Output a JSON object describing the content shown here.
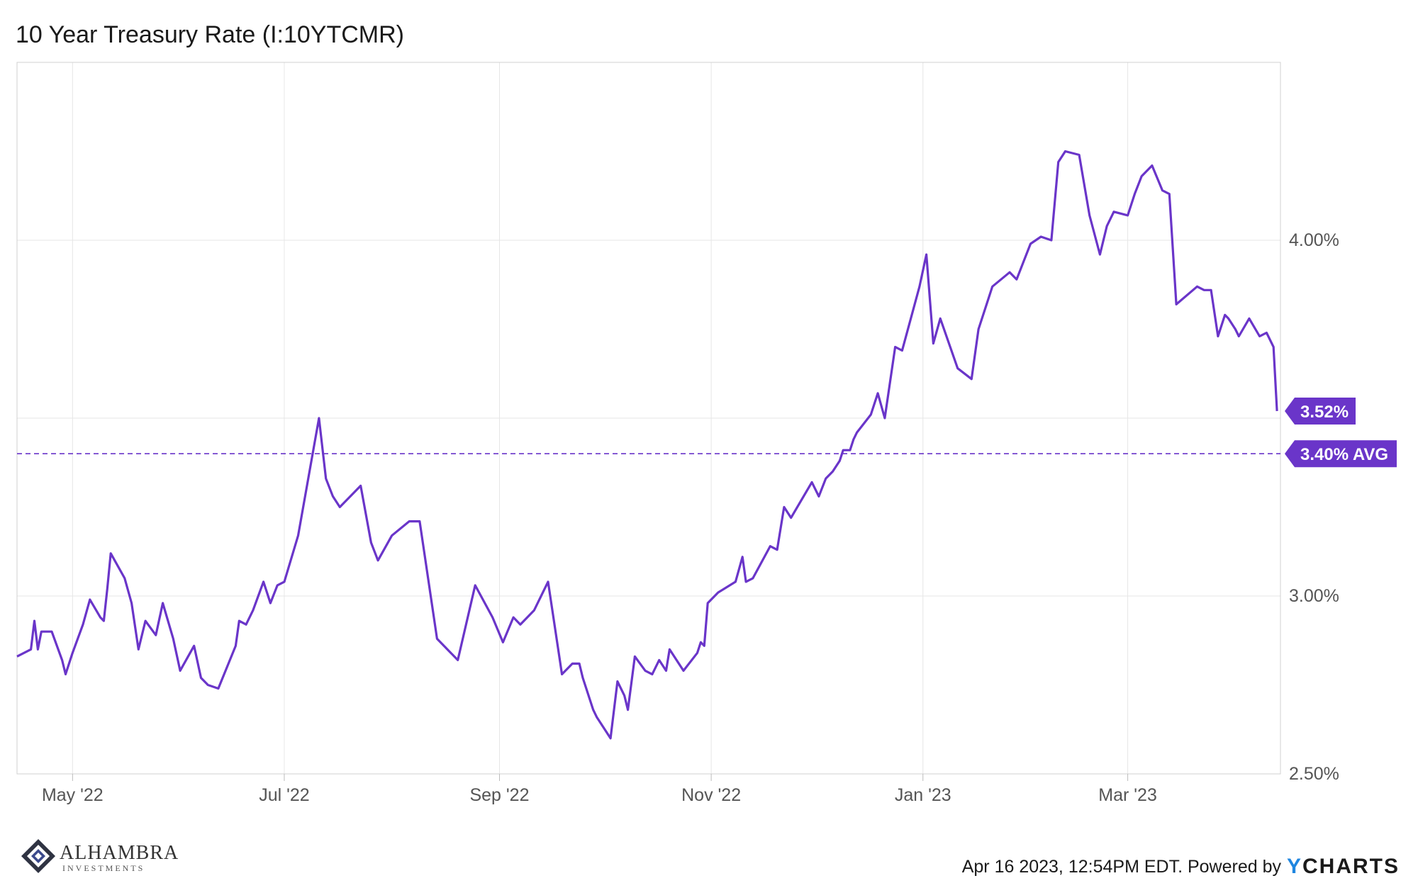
{
  "title": "10 Year Treasury Rate (I:10YTCMR)",
  "logo": {
    "name": "ALHAMBRA",
    "sub": "INVESTMENTS"
  },
  "footer": {
    "text": "Apr 16 2023, 12:54PM EDT. Powered by",
    "brand_y": "Y",
    "brand_rest": "CHARTS"
  },
  "colors": {
    "line": "#6a35c9",
    "badge": "#6a35c9",
    "grid": "#e6e6e6"
  },
  "chart_data": {
    "type": "line",
    "title": "10 Year Treasury Rate (I:10YTCMR)",
    "ylim": [
      2.5,
      4.5
    ],
    "x_range": [
      "2022-04-15",
      "2023-04-14"
    ],
    "yticks": [
      {
        "value": 2.5,
        "label": "2.50%"
      },
      {
        "value": 3.0,
        "label": "3.00%"
      },
      {
        "value": 4.0,
        "label": "4.00%"
      }
    ],
    "xticks": [
      {
        "date": "2022-05-01",
        "label": "May '22"
      },
      {
        "date": "2022-07-01",
        "label": "Jul '22"
      },
      {
        "date": "2022-09-01",
        "label": "Sep '22"
      },
      {
        "date": "2022-11-01",
        "label": "Nov '22"
      },
      {
        "date": "2023-01-01",
        "label": "Jan '23"
      },
      {
        "date": "2023-03-01",
        "label": "Mar '23"
      }
    ],
    "last_value": {
      "value": 3.52,
      "label": "3.52%"
    },
    "average": {
      "value": 3.4,
      "label": "3.40% AVG"
    },
    "grid": true,
    "series": [
      {
        "points": [
          [
            "2022-04-15",
            2.83
          ],
          [
            "2022-04-19",
            2.85
          ],
          [
            "2022-04-20",
            2.93
          ],
          [
            "2022-04-21",
            2.85
          ],
          [
            "2022-04-22",
            2.9
          ],
          [
            "2022-04-25",
            2.9
          ],
          [
            "2022-04-28",
            2.82
          ],
          [
            "2022-04-29",
            2.78
          ],
          [
            "2022-05-01",
            2.84
          ],
          [
            "2022-05-04",
            2.92
          ],
          [
            "2022-05-06",
            2.99
          ],
          [
            "2022-05-09",
            2.94
          ],
          [
            "2022-05-10",
            2.93
          ],
          [
            "2022-05-11",
            3.02
          ],
          [
            "2022-05-12",
            3.12
          ],
          [
            "2022-05-16",
            3.05
          ],
          [
            "2022-05-18",
            2.98
          ],
          [
            "2022-05-20",
            2.85
          ],
          [
            "2022-05-22",
            2.93
          ],
          [
            "2022-05-25",
            2.89
          ],
          [
            "2022-05-27",
            2.98
          ],
          [
            "2022-05-30",
            2.88
          ],
          [
            "2022-06-01",
            2.79
          ],
          [
            "2022-06-05",
            2.86
          ],
          [
            "2022-06-07",
            2.77
          ],
          [
            "2022-06-09",
            2.75
          ],
          [
            "2022-06-12",
            2.74
          ],
          [
            "2022-06-17",
            2.86
          ],
          [
            "2022-06-18",
            2.93
          ],
          [
            "2022-06-20",
            2.92
          ],
          [
            "2022-06-22",
            2.96
          ],
          [
            "2022-06-25",
            3.04
          ],
          [
            "2022-06-27",
            2.98
          ],
          [
            "2022-06-29",
            3.03
          ],
          [
            "2022-07-01",
            3.04
          ],
          [
            "2022-07-05",
            3.17
          ],
          [
            "2022-07-11",
            3.5
          ],
          [
            "2022-07-13",
            3.33
          ],
          [
            "2022-07-15",
            3.28
          ],
          [
            "2022-07-17",
            3.25
          ],
          [
            "2022-07-23",
            3.31
          ],
          [
            "2022-07-26",
            3.15
          ],
          [
            "2022-07-28",
            3.1
          ],
          [
            "2022-08-01",
            3.17
          ],
          [
            "2022-08-06",
            3.21
          ],
          [
            "2022-08-09",
            3.21
          ],
          [
            "2022-08-14",
            2.88
          ],
          [
            "2022-08-20",
            2.82
          ],
          [
            "2022-08-25",
            3.03
          ],
          [
            "2022-08-30",
            2.94
          ],
          [
            "2022-09-02",
            2.87
          ],
          [
            "2022-09-05",
            2.94
          ],
          [
            "2022-09-07",
            2.92
          ],
          [
            "2022-09-11",
            2.96
          ],
          [
            "2022-09-15",
            3.04
          ],
          [
            "2022-09-19",
            2.78
          ],
          [
            "2022-09-22",
            2.81
          ],
          [
            "2022-09-24",
            2.81
          ],
          [
            "2022-09-25",
            2.77
          ],
          [
            "2022-09-28",
            2.68
          ],
          [
            "2022-09-29",
            2.66
          ],
          [
            "2022-10-03",
            2.6
          ],
          [
            "2022-10-05",
            2.76
          ],
          [
            "2022-10-07",
            2.72
          ],
          [
            "2022-10-08",
            2.68
          ],
          [
            "2022-10-10",
            2.83
          ],
          [
            "2022-10-13",
            2.79
          ],
          [
            "2022-10-15",
            2.78
          ],
          [
            "2022-10-17",
            2.82
          ],
          [
            "2022-10-19",
            2.79
          ],
          [
            "2022-10-20",
            2.85
          ],
          [
            "2022-10-24",
            2.79
          ],
          [
            "2022-10-28",
            2.84
          ],
          [
            "2022-10-29",
            2.87
          ],
          [
            "2022-10-30",
            2.86
          ],
          [
            "2022-10-31",
            2.98
          ],
          [
            "2022-11-03",
            3.01
          ],
          [
            "2022-11-08",
            3.04
          ],
          [
            "2022-11-10",
            3.11
          ],
          [
            "2022-11-11",
            3.04
          ],
          [
            "2022-11-13",
            3.05
          ],
          [
            "2022-11-18",
            3.14
          ],
          [
            "2022-11-20",
            3.13
          ],
          [
            "2022-11-22",
            3.25
          ],
          [
            "2022-11-24",
            3.22
          ],
          [
            "2022-11-30",
            3.32
          ],
          [
            "2022-12-02",
            3.28
          ],
          [
            "2022-12-04",
            3.33
          ],
          [
            "2022-12-06",
            3.35
          ],
          [
            "2022-12-08",
            3.38
          ],
          [
            "2022-12-09",
            3.41
          ],
          [
            "2022-12-11",
            3.41
          ],
          [
            "2022-12-12",
            3.44
          ],
          [
            "2022-12-13",
            3.46
          ],
          [
            "2022-12-17",
            3.51
          ],
          [
            "2022-12-19",
            3.57
          ],
          [
            "2022-12-21",
            3.5
          ],
          [
            "2022-12-24",
            3.7
          ],
          [
            "2022-12-26",
            3.69
          ],
          [
            "2022-12-31",
            3.87
          ],
          [
            "2023-01-02",
            3.96
          ],
          [
            "2023-01-04",
            3.71
          ],
          [
            "2023-01-06",
            3.78
          ],
          [
            "2023-01-11",
            3.64
          ],
          [
            "2023-01-15",
            3.61
          ],
          [
            "2023-01-17",
            3.75
          ],
          [
            "2023-01-21",
            3.87
          ],
          [
            "2023-01-26",
            3.91
          ],
          [
            "2023-01-28",
            3.89
          ],
          [
            "2023-01-30",
            3.94
          ],
          [
            "2023-02-01",
            3.99
          ],
          [
            "2023-02-04",
            4.01
          ],
          [
            "2023-02-07",
            4.0
          ],
          [
            "2023-02-09",
            4.22
          ],
          [
            "2023-02-11",
            4.25
          ],
          [
            "2023-02-15",
            4.24
          ],
          [
            "2023-02-18",
            4.07
          ],
          [
            "2023-02-21",
            3.96
          ],
          [
            "2023-02-23",
            4.04
          ],
          [
            "2023-02-25",
            4.08
          ],
          [
            "2023-03-01",
            4.07
          ],
          [
            "2023-03-03",
            4.13
          ],
          [
            "2023-03-05",
            4.18
          ],
          [
            "2023-03-08",
            4.21
          ],
          [
            "2023-03-11",
            4.14
          ],
          [
            "2023-03-13",
            4.13
          ],
          [
            "2023-03-15",
            3.82
          ],
          [
            "2023-03-21",
            3.87
          ],
          [
            "2023-03-23",
            3.86
          ],
          [
            "2023-03-25",
            3.86
          ],
          [
            "2023-03-27",
            3.73
          ],
          [
            "2023-03-29",
            3.79
          ],
          [
            "2023-03-30",
            3.78
          ],
          [
            "2023-04-01",
            3.75
          ],
          [
            "2023-04-02",
            3.73
          ],
          [
            "2023-04-05",
            3.78
          ],
          [
            "2023-04-08",
            3.73
          ],
          [
            "2023-04-10",
            3.74
          ],
          [
            "2023-04-12",
            3.7
          ],
          [
            "2023-04-13",
            3.52
          ]
        ]
      }
    ]
  }
}
